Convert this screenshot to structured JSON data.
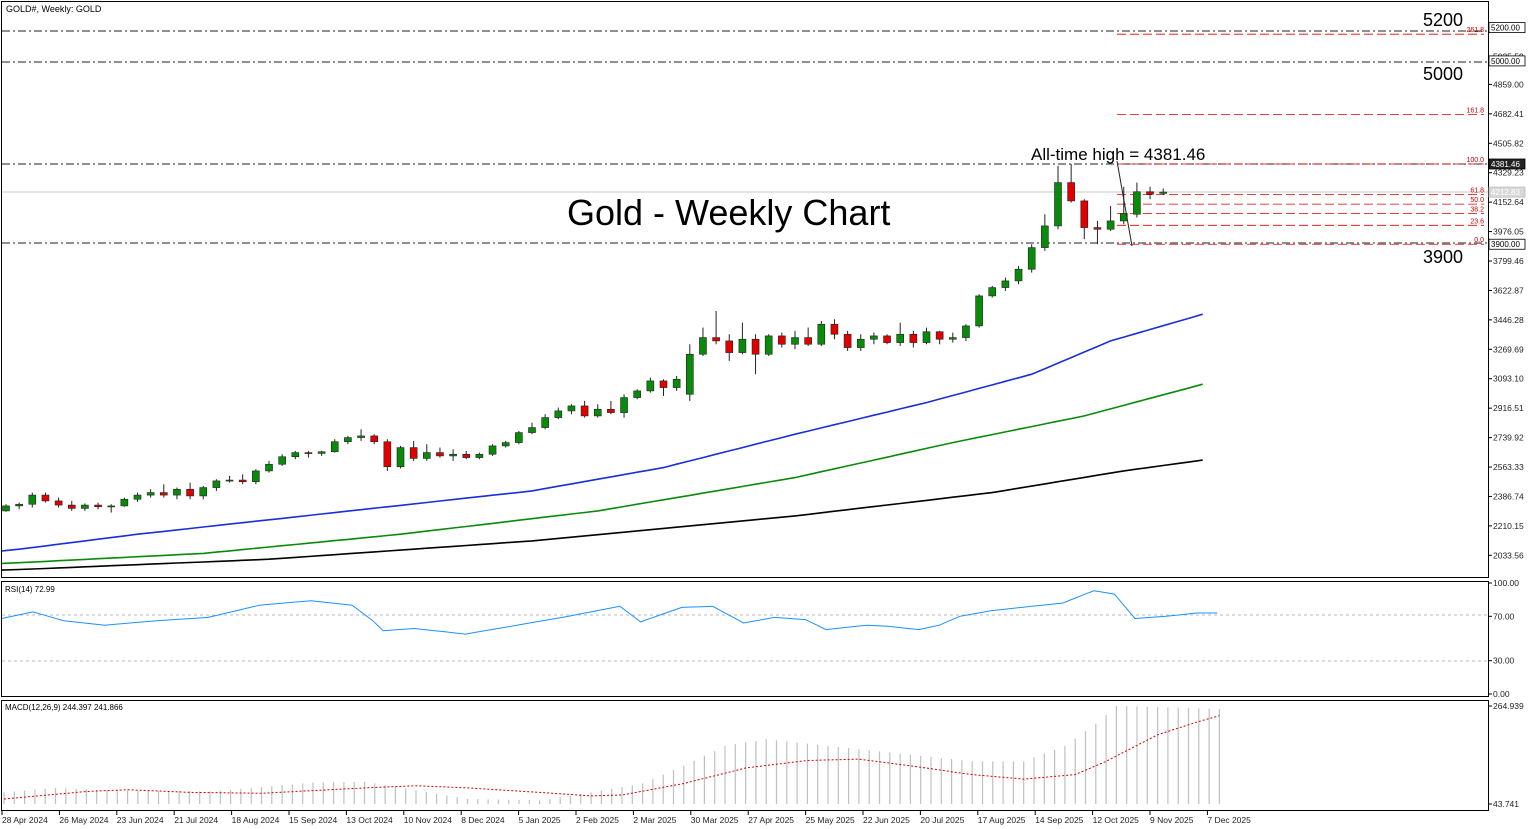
{
  "window": {
    "title": "GOLD#, Weekly:  GOLD",
    "rsi_label": "RSI(14) 72.99",
    "macd_label": "MACD(12,26,9) 244.397 241.866"
  },
  "annotations": {
    "chart_title": "Gold - Weekly Chart",
    "ath": "All-time high = 4381.46",
    "l5200": "5200",
    "l5000": "5000",
    "l3900": "3900"
  },
  "price_axis": {
    "ticks": [
      "5025.59",
      "4859.00",
      "4682.41",
      "4505.82",
      "4329.23",
      "4152.64",
      "3976.05",
      "3799.46",
      "3622.87",
      "3446.28",
      "3269.69",
      "3093.10",
      "2916.51",
      "2739.92",
      "2563.33",
      "2386.74",
      "2210.15",
      "2033.56"
    ],
    "boxes": [
      {
        "label": "5200.00",
        "style": "outline"
      },
      {
        "label": "5000.00",
        "style": "outline"
      },
      {
        "label": "4381.46",
        "style": "dark"
      },
      {
        "label": "4212.83",
        "style": "grey"
      },
      {
        "label": "3900.00",
        "style": "outline"
      }
    ]
  },
  "rsi_axis": [
    "100.00",
    "70.00",
    "30.00",
    "0.00"
  ],
  "macd_axis": [
    "264.939",
    "43.741"
  ],
  "fib_labels": [
    "261.8",
    "161.8",
    "100.0",
    "61.8",
    "50.0",
    "38.2",
    "23.6",
    "0.0"
  ],
  "time_axis": [
    "28 Apr 2024",
    "26 May 2024",
    "23 Jun 2024",
    "21 Jul 2024",
    "18 Aug 2024",
    "15 Sep 2024",
    "13 Oct 2024",
    "10 Nov 2024",
    "8 Dec 2024",
    "5 Jan 2025",
    "2 Feb 2025",
    "2 Mar 2025",
    "30 Mar 2025",
    "27 Apr 2025",
    "25 May 2025",
    "22 Jun 2025",
    "20 Jul 2025",
    "17 Aug 2025",
    "14 Sep 2025",
    "12 Oct 2025",
    "9 Nov 2025",
    "7 Dec 2025"
  ],
  "chart_data": {
    "type": "candlestick",
    "title": "Gold - Weekly Chart",
    "symbol": "GOLD#",
    "timeframe": "Weekly",
    "price_range": [
      1950,
      5320
    ],
    "horizontal_levels": [
      5200,
      5000,
      4381.46,
      3900
    ],
    "last_price": 4212.83,
    "fibonacci_retracement": {
      "low": 3900,
      "high": 4381.46,
      "levels": [
        0,
        23.6,
        38.2,
        50,
        61.8,
        100,
        161.8,
        261.8
      ]
    },
    "candles": [
      [
        2300,
        2340,
        2295,
        2330
      ],
      [
        2330,
        2350,
        2310,
        2340
      ],
      [
        2340,
        2410,
        2320,
        2395
      ],
      [
        2395,
        2410,
        2350,
        2360
      ],
      [
        2360,
        2380,
        2320,
        2335
      ],
      [
        2335,
        2360,
        2300,
        2315
      ],
      [
        2315,
        2345,
        2300,
        2335
      ],
      [
        2335,
        2350,
        2310,
        2325
      ],
      [
        2325,
        2340,
        2290,
        2330
      ],
      [
        2330,
        2380,
        2325,
        2370
      ],
      [
        2370,
        2410,
        2355,
        2395
      ],
      [
        2395,
        2430,
        2380,
        2410
      ],
      [
        2410,
        2460,
        2380,
        2395
      ],
      [
        2395,
        2440,
        2370,
        2430
      ],
      [
        2430,
        2470,
        2370,
        2390
      ],
      [
        2390,
        2450,
        2370,
        2440
      ],
      [
        2440,
        2490,
        2420,
        2480
      ],
      [
        2480,
        2510,
        2470,
        2485
      ],
      [
        2485,
        2520,
        2460,
        2475
      ],
      [
        2475,
        2550,
        2460,
        2540
      ],
      [
        2540,
        2600,
        2530,
        2580
      ],
      [
        2580,
        2640,
        2570,
        2625
      ],
      [
        2625,
        2660,
        2610,
        2650
      ],
      [
        2650,
        2660,
        2620,
        2645
      ],
      [
        2645,
        2660,
        2630,
        2655
      ],
      [
        2655,
        2730,
        2650,
        2715
      ],
      [
        2715,
        2750,
        2700,
        2740
      ],
      [
        2740,
        2790,
        2720,
        2750
      ],
      [
        2750,
        2760,
        2700,
        2715
      ],
      [
        2715,
        2730,
        2540,
        2565
      ],
      [
        2565,
        2690,
        2555,
        2680
      ],
      [
        2680,
        2720,
        2600,
        2615
      ],
      [
        2615,
        2700,
        2600,
        2650
      ],
      [
        2650,
        2680,
        2620,
        2630
      ],
      [
        2630,
        2670,
        2600,
        2640
      ],
      [
        2640,
        2660,
        2610,
        2620
      ],
      [
        2620,
        2650,
        2610,
        2640
      ],
      [
        2640,
        2700,
        2630,
        2690
      ],
      [
        2690,
        2720,
        2680,
        2710
      ],
      [
        2710,
        2780,
        2700,
        2770
      ],
      [
        2770,
        2830,
        2760,
        2800
      ],
      [
        2800,
        2880,
        2790,
        2860
      ],
      [
        2860,
        2920,
        2850,
        2900
      ],
      [
        2900,
        2940,
        2880,
        2930
      ],
      [
        2930,
        2960,
        2860,
        2870
      ],
      [
        2870,
        2940,
        2860,
        2910
      ],
      [
        2910,
        2960,
        2880,
        2890
      ],
      [
        2890,
        3000,
        2860,
        2980
      ],
      [
        2980,
        3030,
        2970,
        3020
      ],
      [
        3020,
        3100,
        3010,
        3080
      ],
      [
        3080,
        3090,
        2990,
        3040
      ],
      [
        3040,
        3110,
        3020,
        3090
      ],
      [
        3000,
        3300,
        2960,
        3240
      ],
      [
        3240,
        3400,
        3230,
        3340
      ],
      [
        3340,
        3500,
        3300,
        3320
      ],
      [
        3320,
        3360,
        3200,
        3250
      ],
      [
        3250,
        3430,
        3240,
        3330
      ],
      [
        3330,
        3360,
        3120,
        3240
      ],
      [
        3240,
        3360,
        3230,
        3350
      ],
      [
        3350,
        3370,
        3280,
        3300
      ],
      [
        3300,
        3380,
        3270,
        3340
      ],
      [
        3340,
        3400,
        3290,
        3300
      ],
      [
        3300,
        3440,
        3290,
        3420
      ],
      [
        3420,
        3450,
        3330,
        3360
      ],
      [
        3360,
        3380,
        3260,
        3280
      ],
      [
        3280,
        3360,
        3260,
        3330
      ],
      [
        3330,
        3370,
        3300,
        3350
      ],
      [
        3350,
        3360,
        3300,
        3310
      ],
      [
        3310,
        3430,
        3290,
        3360
      ],
      [
        3360,
        3380,
        3280,
        3310
      ],
      [
        3310,
        3400,
        3300,
        3375
      ],
      [
        3375,
        3380,
        3300,
        3330
      ],
      [
        3330,
        3370,
        3310,
        3340
      ],
      [
        3340,
        3420,
        3320,
        3410
      ],
      [
        3410,
        3600,
        3400,
        3590
      ],
      [
        3590,
        3650,
        3580,
        3640
      ],
      [
        3640,
        3700,
        3620,
        3680
      ],
      [
        3680,
        3770,
        3660,
        3750
      ],
      [
        3750,
        3900,
        3730,
        3880
      ],
      [
        3880,
        4080,
        3860,
        4010
      ],
      [
        4010,
        4370,
        3990,
        4270
      ],
      [
        4270,
        4381.46,
        4150,
        4160
      ],
      [
        4160,
        4170,
        3930,
        4000
      ],
      [
        4000,
        4040,
        3900,
        3990
      ],
      [
        3990,
        4130,
        3980,
        4040
      ],
      [
        4040,
        4245,
        4020,
        4085
      ],
      [
        4080,
        4270,
        4060,
        4215
      ],
      [
        4215,
        4245,
        4170,
        4200
      ],
      [
        4205,
        4235,
        4195,
        4213
      ]
    ],
    "moving_averages": [
      {
        "name": "blue",
        "color": "#1a2fd6",
        "anchors": [
          [
            0,
            2060
          ],
          [
            10,
            2160
          ],
          [
            25,
            2290
          ],
          [
            40,
            2420
          ],
          [
            50,
            2560
          ],
          [
            60,
            2760
          ],
          [
            70,
            2950
          ],
          [
            78,
            3120
          ],
          [
            84,
            3320
          ],
          [
            91,
            3480
          ]
        ]
      },
      {
        "name": "green",
        "color": "#0a8a0a",
        "anchors": [
          [
            0,
            1985
          ],
          [
            15,
            2045
          ],
          [
            30,
            2160
          ],
          [
            45,
            2300
          ],
          [
            60,
            2500
          ],
          [
            72,
            2710
          ],
          [
            82,
            2870
          ],
          [
            91,
            3060
          ]
        ]
      },
      {
        "name": "black",
        "color": "#000000",
        "anchors": [
          [
            0,
            1945
          ],
          [
            20,
            2010
          ],
          [
            40,
            2120
          ],
          [
            60,
            2270
          ],
          [
            75,
            2410
          ],
          [
            85,
            2540
          ],
          [
            91,
            2605
          ]
        ]
      }
    ],
    "rsi": {
      "period": 14,
      "last": 72.99,
      "range": [
        0,
        100
      ],
      "levels": [
        70,
        30
      ],
      "anchors": [
        [
          0,
          68
        ],
        [
          3,
          74
        ],
        [
          6,
          66
        ],
        [
          10,
          62
        ],
        [
          15,
          66
        ],
        [
          20,
          69
        ],
        [
          25,
          80
        ],
        [
          30,
          84
        ],
        [
          34,
          80
        ],
        [
          36,
          66
        ],
        [
          37,
          57
        ],
        [
          40,
          59
        ],
        [
          45,
          54
        ],
        [
          50,
          62
        ],
        [
          55,
          70
        ],
        [
          60,
          79
        ],
        [
          62,
          65
        ],
        [
          66,
          78
        ],
        [
          69,
          79
        ],
        [
          72,
          64
        ],
        [
          75,
          69
        ],
        [
          78,
          67
        ],
        [
          80,
          58
        ],
        [
          84,
          62
        ],
        [
          86,
          61
        ],
        [
          89,
          58
        ],
        [
          91,
          62
        ],
        [
          93,
          70
        ],
        [
          96,
          75
        ],
        [
          99,
          78
        ],
        [
          103,
          82
        ],
        [
          106,
          93
        ],
        [
          108,
          90
        ],
        [
          110,
          68
        ],
        [
          113,
          70
        ],
        [
          116,
          73
        ],
        [
          118,
          73
        ]
      ]
    },
    "macd": {
      "params": "12,26,9",
      "main": 244.397,
      "signal": 241.866,
      "range": [
        43.741,
        264.939
      ],
      "hist_anchors": [
        [
          0,
          70
        ],
        [
          5,
          80
        ],
        [
          10,
          75
        ],
        [
          20,
          72
        ],
        [
          30,
          92
        ],
        [
          35,
          94
        ],
        [
          40,
          75
        ],
        [
          45,
          55
        ],
        [
          52,
          52
        ],
        [
          57,
          70
        ],
        [
          62,
          90
        ],
        [
          66,
          130
        ],
        [
          70,
          175
        ],
        [
          74,
          190
        ],
        [
          78,
          180
        ],
        [
          82,
          170
        ],
        [
          86,
          160
        ],
        [
          90,
          150
        ],
        [
          94,
          140
        ],
        [
          99,
          140
        ],
        [
          103,
          175
        ],
        [
          106,
          225
        ],
        [
          108,
          265
        ],
        [
          113,
          262
        ],
        [
          118,
          258
        ]
      ],
      "signal_anchors": [
        [
          0,
          55
        ],
        [
          8,
          72
        ],
        [
          12,
          76
        ],
        [
          18,
          70
        ],
        [
          25,
          68
        ],
        [
          35,
          80
        ],
        [
          40,
          85
        ],
        [
          45,
          80
        ],
        [
          52,
          70
        ],
        [
          57,
          62
        ],
        [
          60,
          64
        ],
        [
          66,
          90
        ],
        [
          72,
          125
        ],
        [
          78,
          142
        ],
        [
          83,
          145
        ],
        [
          88,
          130
        ],
        [
          94,
          110
        ],
        [
          99,
          100
        ],
        [
          104,
          110
        ],
        [
          107,
          140
        ],
        [
          112,
          200
        ],
        [
          116,
          230
        ],
        [
          118,
          243
        ]
      ]
    }
  }
}
